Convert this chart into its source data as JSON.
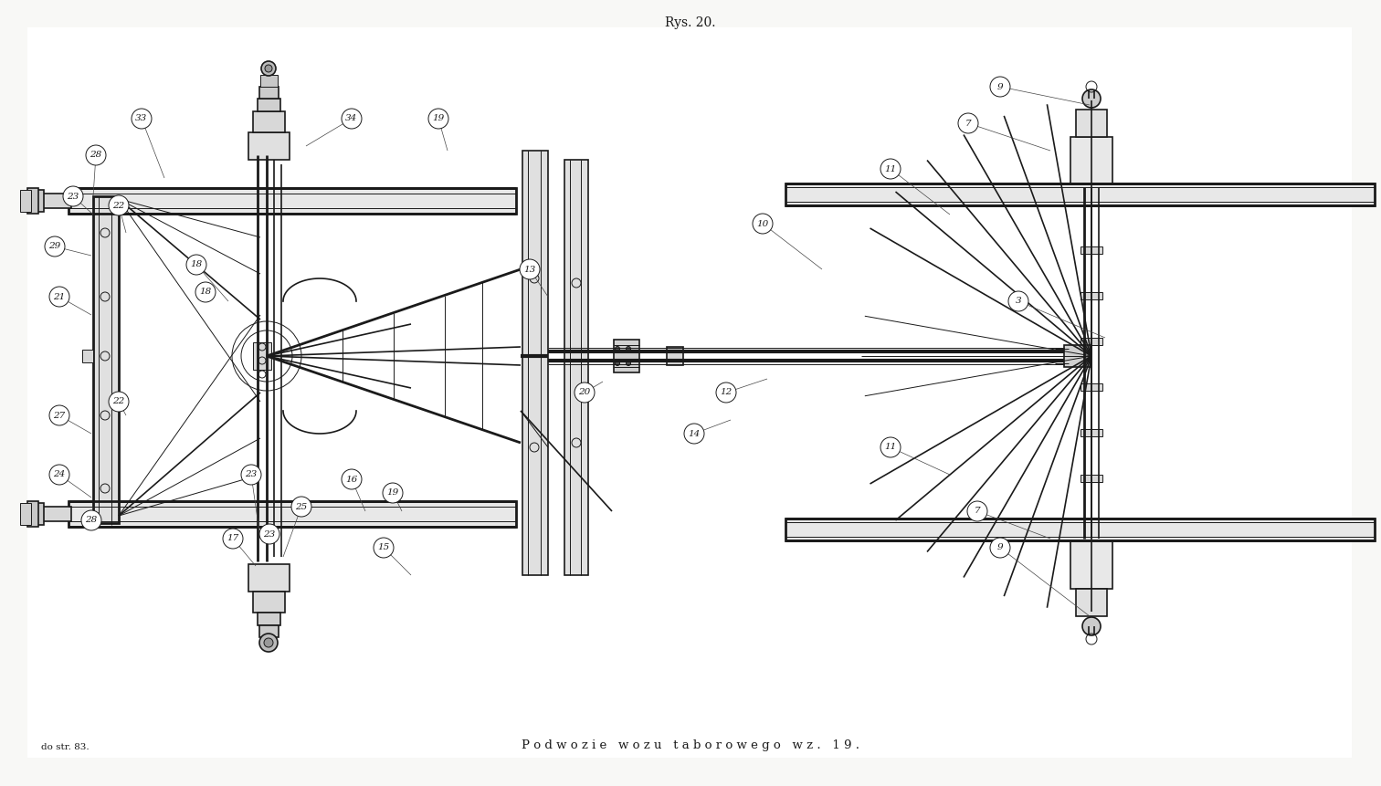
{
  "title": "Rys. 20.",
  "caption": "P o d w o z i e   w o z u   t a b o r o w e g o   w z .   1 9 .",
  "footnote": "do str. 83.",
  "bg_color": "#f8f8f6",
  "line_color": "#1a1a1a",
  "title_fontsize": 10,
  "caption_fontsize": 9.5,
  "footnote_fontsize": 7.5
}
